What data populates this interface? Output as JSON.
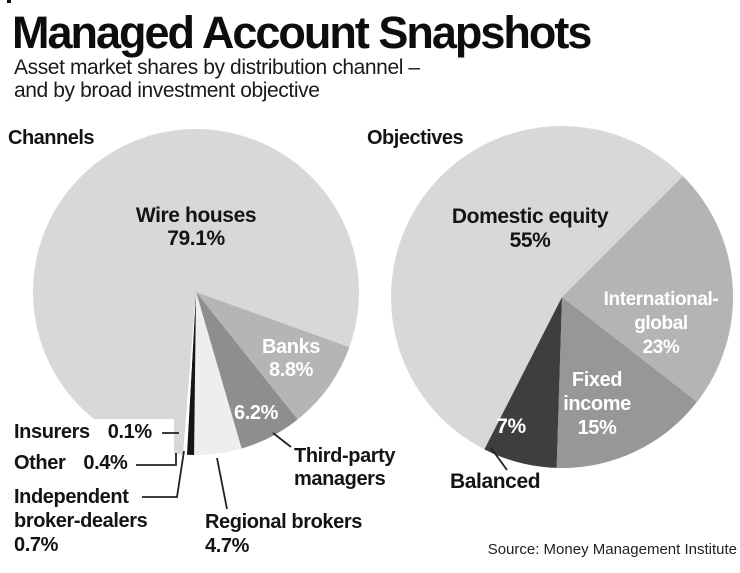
{
  "header": {
    "title": "Managed Account Snapshots",
    "subtitle": "Asset market shares by distribution channel –\nand by broad investment objective"
  },
  "footer": {
    "source": "Source: Money Management Institute"
  },
  "chart_data": [
    {
      "type": "pie",
      "title": "Channels",
      "legend_position": "labels-on-chart",
      "categories": [
        "Wire houses",
        "Banks",
        "Third-party managers",
        "Regional brokers",
        "Independent broker-dealers",
        "Other",
        "Insurers"
      ],
      "values": [
        79.1,
        8.8,
        6.2,
        4.7,
        0.7,
        0.4,
        0.1
      ],
      "pct_labels": [
        "79.1%",
        "8.8%",
        "6.2%",
        "4.7%",
        "0.7%",
        "0.4%",
        "0.1%"
      ],
      "colors": [
        "#d8d8d8",
        "#b5b5b5",
        "#8e8e8e",
        "#eeeeee",
        "#151515",
        "#ffffff",
        "#cccccc"
      ],
      "display": {
        "wire": "Wire houses\n79.1%",
        "banks": "Banks\n8.8%",
        "third_party_pct": "6.2%",
        "third_party": "Third-party\nmanagers",
        "regional": "Regional brokers\n4.7%",
        "ibd": "Independent\nbroker-dealers\n0.7%"
      }
    },
    {
      "type": "pie",
      "title": "Objectives",
      "legend_position": "labels-on-chart",
      "categories": [
        "Domestic equity",
        "International-global",
        "Fixed income",
        "Balanced"
      ],
      "values": [
        55,
        23,
        15,
        7
      ],
      "pct_labels": [
        "55%",
        "23%",
        "15%",
        "7%"
      ],
      "colors": [
        "#d8d8d8",
        "#b4b4b4",
        "#979797",
        "#3e3e3e"
      ],
      "display": {
        "domestic": "Domestic equity\n55%",
        "intl": "International-\nglobal\n23%",
        "fixed": "Fixed\nincome\n15%",
        "balanced_pct": "7%",
        "balanced": "Balanced"
      }
    }
  ]
}
